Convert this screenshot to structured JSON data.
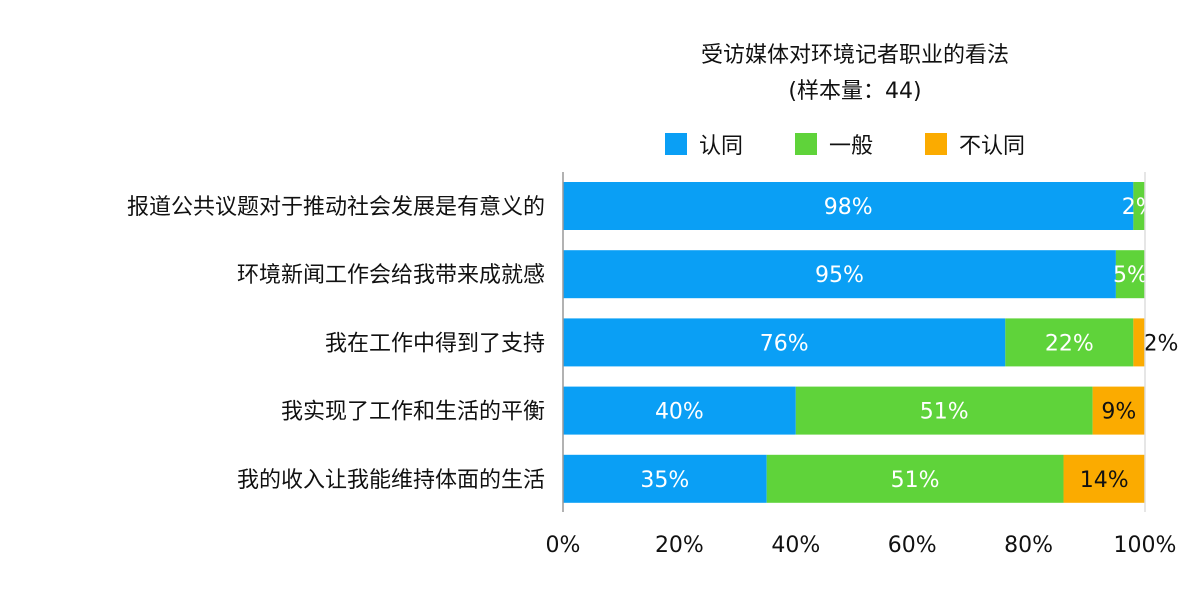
{
  "chart_data": {
    "type": "bar",
    "orientation": "horizontal",
    "stacked": "percent",
    "title": "受访媒体对环境记者职业的看法",
    "subtitle": "(样本量：44)",
    "categories": [
      "报道公共议题对于推动社会发展是有意义的",
      "环境新闻工作会给我带来成就感",
      "我在工作中得到了支持",
      "我实现了工作和生活的平衡",
      "我的收入让我能维持体面的生活"
    ],
    "series": [
      {
        "name": "认同",
        "color": "#0A9FF5",
        "values": [
          98,
          95,
          76,
          40,
          35
        ]
      },
      {
        "name": "一般",
        "color": "#5FD33A",
        "values": [
          2,
          5,
          22,
          51,
          51
        ]
      },
      {
        "name": "不认同",
        "color": "#FBAB00",
        "values": [
          0,
          0,
          2,
          9,
          14
        ]
      }
    ],
    "xlim": [
      0,
      100
    ],
    "xticks": [
      "0%",
      "20%",
      "40%",
      "60%",
      "80%",
      "100%"
    ],
    "legend_position": "top",
    "grid": false
  }
}
